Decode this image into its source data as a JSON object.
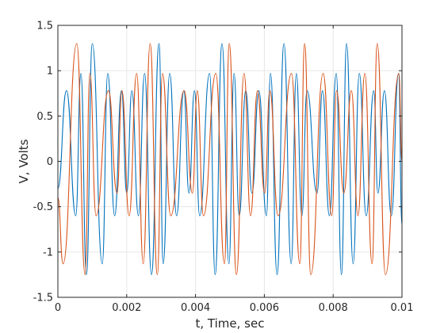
{
  "chart_data": {
    "type": "line",
    "title": "",
    "xlabel": "t, Time, sec",
    "ylabel": "V, Volts",
    "xlim": [
      0,
      0.01
    ],
    "ylim": [
      -1.5,
      1.5
    ],
    "grid": true,
    "x_ticks": [
      0,
      0.002,
      0.004,
      0.006,
      0.008,
      0.01
    ],
    "x_tick_labels": [
      "0",
      "0.002",
      "0.004",
      "0.006",
      "0.008",
      "0.01"
    ],
    "y_ticks": [
      -1.5,
      -1,
      -0.5,
      0,
      0.5,
      1,
      1.5
    ],
    "y_tick_labels": [
      "-1.5",
      "-1",
      "-0.5",
      "0",
      "0.5",
      "1",
      "1.5"
    ],
    "series": [
      {
        "color": "#0072BD",
        "x": [
          0,
          0.00025,
          0.00052,
          0.00067,
          0.00083,
          0.001,
          0.00129,
          0.00145,
          0.00165,
          0.00185,
          0.002,
          0.00215,
          0.00234,
          0.00252,
          0.00272,
          0.00294,
          0.00306,
          0.00325,
          0.00345,
          0.00366,
          0.00381,
          0.00397,
          0.00412,
          0.00441,
          0.00457,
          0.00477,
          0.00497,
          0.00512,
          0.00527,
          0.00546,
          0.00564,
          0.00584,
          0.00606,
          0.00618,
          0.00637,
          0.00657,
          0.00678,
          0.00693,
          0.00709,
          0.00724,
          0.00753,
          0.00769,
          0.00789,
          0.00809,
          0.00824,
          0.00839,
          0.00858,
          0.00876,
          0.00896,
          0.00918,
          0.0093,
          0.00949,
          0.00969,
          0.0099,
          0.01
        ],
        "y": [
          -0.3,
          0.78,
          -0.6,
          0.97,
          -1.25,
          1.3,
          -1.13,
          0.97,
          -0.6,
          0.78,
          -0.35,
          0.78,
          -0.6,
          0.97,
          -1.25,
          1.3,
          -1.13,
          0.97,
          -0.6,
          0.78,
          -0.35,
          0.78,
          -0.6,
          0.97,
          -1.25,
          1.3,
          -1.13,
          0.97,
          -0.6,
          0.78,
          -0.35,
          0.78,
          -0.6,
          0.97,
          -1.25,
          1.3,
          -1.13,
          0.97,
          -0.6,
          0.78,
          -0.35,
          0.78,
          -0.6,
          0.97,
          -1.25,
          1.3,
          -1.13,
          0.97,
          -0.6,
          0.78,
          -0.35,
          0.78,
          -0.6,
          0.97,
          -0.7
        ]
      },
      {
        "color": "#D95319",
        "x": [
          0,
          0.00015,
          0.00055,
          0.00079,
          0.00093,
          0.00111,
          0.00147,
          0.00172,
          0.00186,
          0.00207,
          0.00229,
          0.00248,
          0.00268,
          0.00289,
          0.00304,
          0.00328,
          0.00367,
          0.00391,
          0.00405,
          0.00423,
          0.00459,
          0.00484,
          0.00498,
          0.00519,
          0.00541,
          0.0056,
          0.0058,
          0.00601,
          0.00616,
          0.0064,
          0.00679,
          0.00703,
          0.00717,
          0.00735,
          0.00771,
          0.00796,
          0.0081,
          0.00831,
          0.00853,
          0.00872,
          0.00892,
          0.00913,
          0.00928,
          0.00952,
          0.00991,
          0.01
        ],
        "y": [
          -0.4,
          -1.13,
          1.3,
          -1.25,
          0.97,
          -0.6,
          0.78,
          -0.35,
          0.78,
          -0.6,
          0.97,
          -1.13,
          1.3,
          -1.25,
          0.97,
          -0.6,
          0.78,
          -0.35,
          0.78,
          -0.6,
          0.97,
          -1.13,
          1.3,
          -1.25,
          0.97,
          -0.6,
          0.78,
          -0.35,
          0.78,
          -0.6,
          0.97,
          -1.13,
          1.3,
          -1.25,
          0.97,
          -0.6,
          0.78,
          -0.35,
          0.78,
          -0.6,
          0.97,
          -1.13,
          1.3,
          -1.25,
          0.97,
          0.0
        ]
      }
    ]
  }
}
